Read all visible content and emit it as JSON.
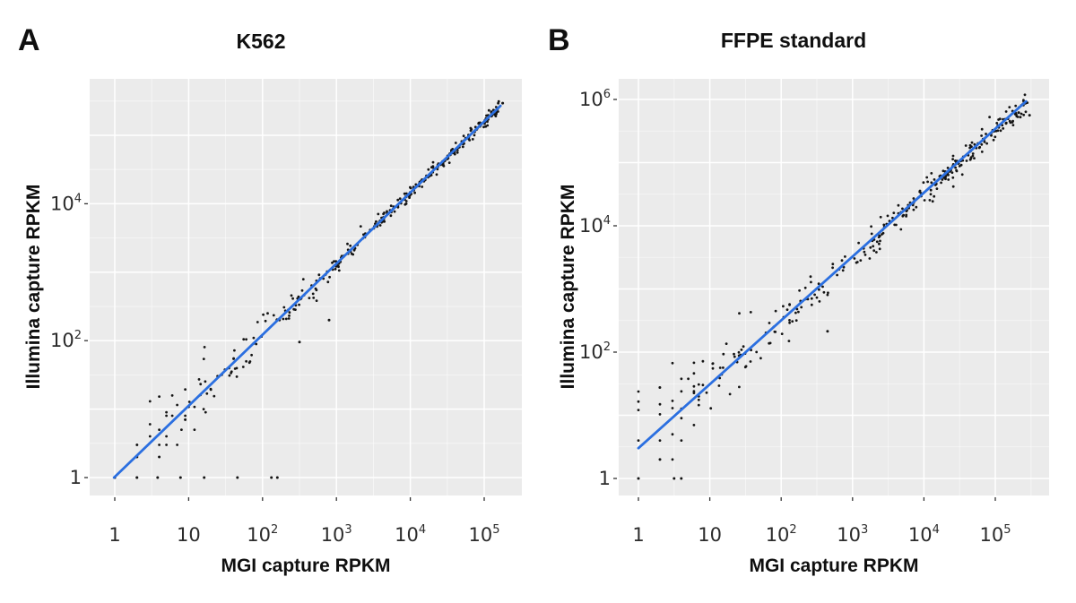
{
  "figure": {
    "colors": {
      "background": "#ffffff",
      "panel_background": "#ebebeb",
      "grid": "#ffffff",
      "trend_line": "#2b6fe0",
      "points": "#141414",
      "tick": "#333333",
      "text": "#0f0f0f"
    }
  },
  "chart_data": [
    {
      "panel_label": "A",
      "type": "scatter",
      "title": "K562",
      "xlabel": "MGI capture RPKM",
      "ylabel": "Illumina capture RPKM",
      "x_scale": "log10",
      "y_scale": "log10",
      "x_tick_labels": [
        "1",
        "10",
        "10^2",
        "10^3",
        "10^4",
        "10^5"
      ],
      "x_tick_logs": [
        0,
        1,
        2,
        3,
        4,
        5
      ],
      "y_tick_labels": [
        "1",
        "10^2",
        "10^4"
      ],
      "y_tick_logs": [
        0,
        2,
        4
      ],
      "xlim_log": [
        -0.34,
        5.51
      ],
      "ylim_log": [
        -0.26,
        5.82
      ],
      "grid": "major+minor",
      "legend": "none",
      "trend_line_log": {
        "x1": -0.01,
        "y1": 0.0,
        "x2": 5.22,
        "y2": 5.43
      },
      "points_spec": {
        "seed": 7,
        "count": 340,
        "logx_max": 5.2,
        "density_pow": 0.42,
        "low_frac": 0.13,
        "low_max": 1.7,
        "slope": 1.04,
        "intercept": 0.0,
        "sigma_min": 0.04,
        "sigma_scale": 0.45,
        "sigma_decay": 1.15,
        "snap_below": 1.0
      },
      "extra_points_log": [
        [
          0.3,
          0
        ],
        [
          0.58,
          0
        ],
        [
          0.89,
          0
        ],
        [
          1.21,
          0
        ],
        [
          1.66,
          0
        ],
        [
          2.12,
          0
        ],
        [
          2.2,
          0
        ],
        [
          5.25,
          5.47
        ],
        [
          2.5,
          1.98
        ],
        [
          2.9,
          2.3
        ]
      ]
    },
    {
      "panel_label": "B",
      "type": "scatter",
      "title": "FFPE standard",
      "xlabel": "MGI capture RPKM",
      "ylabel": "Illumina capture RPKM",
      "x_scale": "log10",
      "y_scale": "log10",
      "x_tick_labels": [
        "1",
        "10",
        "10^2",
        "10^3",
        "10^4",
        "10^5"
      ],
      "x_tick_logs": [
        0,
        1,
        2,
        3,
        4,
        5
      ],
      "y_tick_labels": [
        "1",
        "10^2",
        "10^4",
        "10^6"
      ],
      "y_tick_logs": [
        0,
        2,
        4,
        6
      ],
      "xlim_log": [
        -0.28,
        5.75
      ],
      "ylim_log": [
        -0.27,
        6.33
      ],
      "grid": "major+minor",
      "legend": "none",
      "trend_line_log": {
        "x1": 0.0,
        "y1": 0.48,
        "x2": 5.43,
        "y2": 5.97
      },
      "points_spec": {
        "seed": 11,
        "count": 320,
        "logx_max": 5.45,
        "density_pow": 0.45,
        "low_frac": 0.1,
        "low_max": 1.6,
        "slope": 1.01,
        "intercept": 0.45,
        "sigma_min": 0.09,
        "sigma_scale": 0.4,
        "sigma_decay": 1.2,
        "snap_below": 1.0
      },
      "extra_points_log": [
        [
          0,
          0
        ],
        [
          0.5,
          0
        ],
        [
          0.6,
          0
        ],
        [
          5.48,
          5.75
        ],
        [
          2.65,
          2.33
        ],
        [
          0.3,
          1.44
        ]
      ]
    }
  ]
}
